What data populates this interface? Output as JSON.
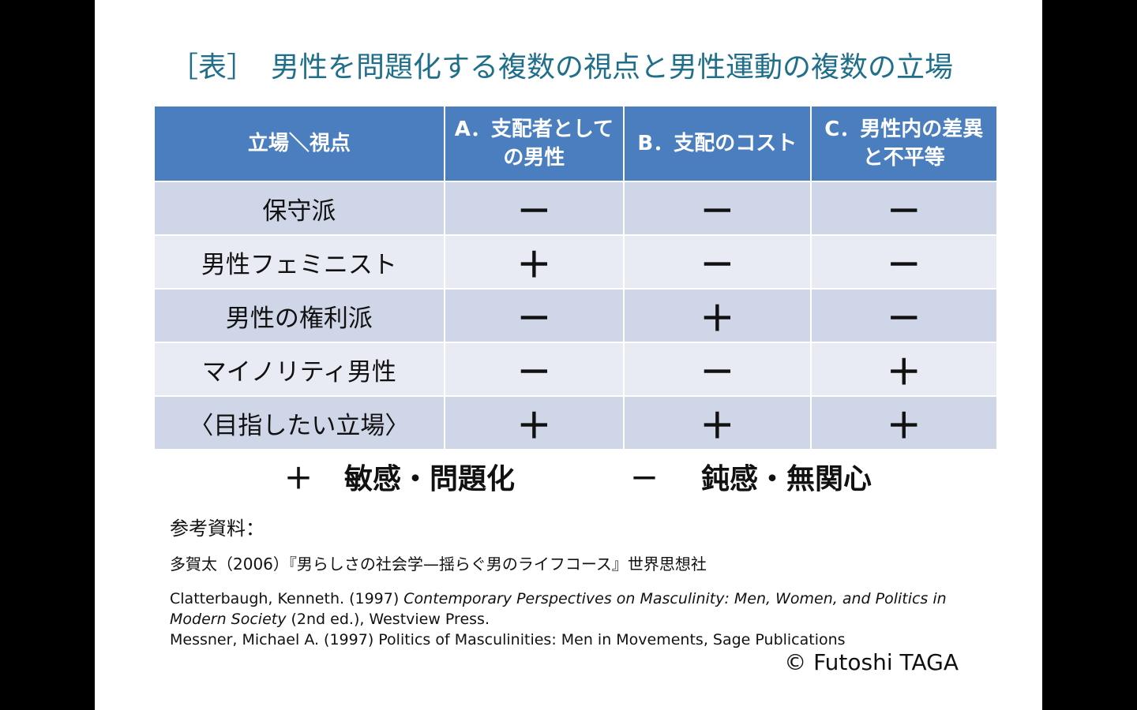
{
  "title": {
    "label": "［表］",
    "text": "男性を問題化する複数の視点と男性運動の複数の立場"
  },
  "table": {
    "headers": [
      "立場＼視点",
      "A．支配者としての男性",
      "B．支配のコスト",
      "C．男性内の差異と不平等"
    ],
    "rows": [
      {
        "label": "保守派",
        "values": [
          "－",
          "－",
          "－"
        ]
      },
      {
        "label": "男性フェミニスト",
        "values": [
          "＋",
          "－",
          "－"
        ]
      },
      {
        "label": "男性の権利派",
        "values": [
          "－",
          "＋",
          "－"
        ]
      },
      {
        "label": "マイノリティ男性",
        "values": [
          "－",
          "－",
          "＋"
        ]
      },
      {
        "label": "〈目指したい立場〉",
        "values": [
          "＋",
          "＋",
          "＋"
        ]
      }
    ]
  },
  "legend": {
    "plus_symbol": "＋",
    "plus_text": "敏感・問題化",
    "minus_symbol": "－",
    "minus_text": "鈍感・無関心"
  },
  "references": {
    "heading": "参考資料：",
    "jp": "多賀太（2006）『男らしさの社会学—揺らぐ男のライフコース』世界思想社",
    "ref1_pre": "Clatterbaugh, Kenneth. (1997) ",
    "ref1_title": "Contemporary Perspectives on Masculinity: Men, Women, and Politics in Modern Society",
    "ref1_post": " (2nd ed.), Westview Press.",
    "ref2": "Messner, Michael A. (1997) Politics of Masculinities: Men in Movements, Sage Publications"
  },
  "copyright": "© Futoshi TAGA"
}
